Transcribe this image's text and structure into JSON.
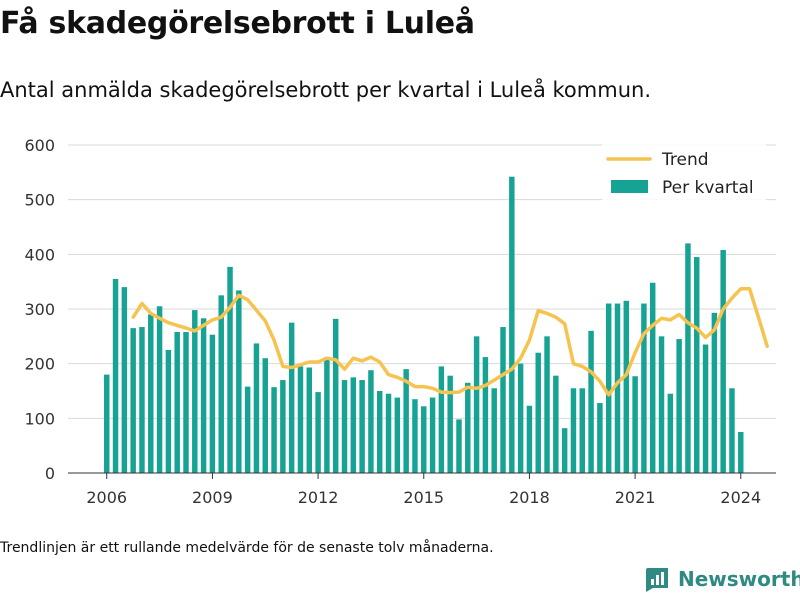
{
  "title": "Få skadegörelsebrott i Luleå",
  "subtitle": "Antal anmälda skadegörelsebrott per kvartal i Luleå kommun.",
  "footnote": "Trendlinjen är ett rullande medelvärde för de senaste tolv månaderna.",
  "brand": {
    "name": "Newsworthy",
    "icon": "newsworthy-logo-icon"
  },
  "colors": {
    "bars": "#16a394",
    "trend": "#f6c350",
    "grid": "#d9d9d9",
    "brand": "#2e8a83"
  },
  "chart_data": {
    "type": "bar",
    "x_start": 2006.0,
    "x_step": 0.25,
    "ylim": [
      0,
      600
    ],
    "yticks": [
      "0",
      "100",
      "200",
      "300",
      "400",
      "500",
      "600"
    ],
    "ytick_values": [
      0,
      100,
      200,
      300,
      400,
      500,
      600
    ],
    "xticks": [
      "2006",
      "2009",
      "2012",
      "2015",
      "2018",
      "2021",
      "2024"
    ],
    "xtick_values": [
      2006,
      2009,
      2012,
      2015,
      2018,
      2021,
      2024
    ],
    "xlim": [
      2004.9,
      2025.0
    ],
    "grid": true,
    "legend": {
      "placement": "top-right",
      "labels": [
        "Trend",
        "Per kvartal"
      ]
    },
    "series": [
      {
        "name": "Per kvartal",
        "type": "bar",
        "values": [
          180,
          355,
          340,
          265,
          267,
          290,
          305,
          225,
          258,
          258,
          298,
          283,
          253,
          325,
          377,
          334,
          158,
          237,
          210,
          157,
          170,
          275,
          195,
          193,
          148,
          212,
          282,
          170,
          175,
          170,
          188,
          150,
          145,
          138,
          190,
          135,
          122,
          138,
          195,
          178,
          98,
          165,
          250,
          212,
          155,
          267,
          542,
          200,
          123,
          220,
          250,
          178,
          82,
          155,
          155,
          260,
          128,
          310,
          310,
          315,
          177,
          310,
          348,
          250,
          145,
          245,
          420,
          395,
          235,
          293,
          408,
          155,
          75
        ]
      },
      {
        "name": "Trend",
        "type": "line",
        "x_start": 2006.75,
        "values": [
          285,
          310,
          292,
          283,
          275,
          270,
          265,
          260,
          270,
          280,
          285,
          303,
          325,
          317,
          298,
          278,
          243,
          195,
          193,
          198,
          203,
          203,
          210,
          207,
          190,
          210,
          205,
          212,
          203,
          180,
          175,
          168,
          158,
          158,
          155,
          148,
          147,
          148,
          157,
          155,
          160,
          170,
          180,
          190,
          210,
          243,
          297,
          292,
          285,
          273,
          200,
          195,
          185,
          168,
          143,
          165,
          180,
          220,
          255,
          270,
          283,
          280,
          290,
          275,
          265,
          248,
          262,
          300,
          320,
          337,
          337,
          285,
          232
        ]
      }
    ]
  }
}
